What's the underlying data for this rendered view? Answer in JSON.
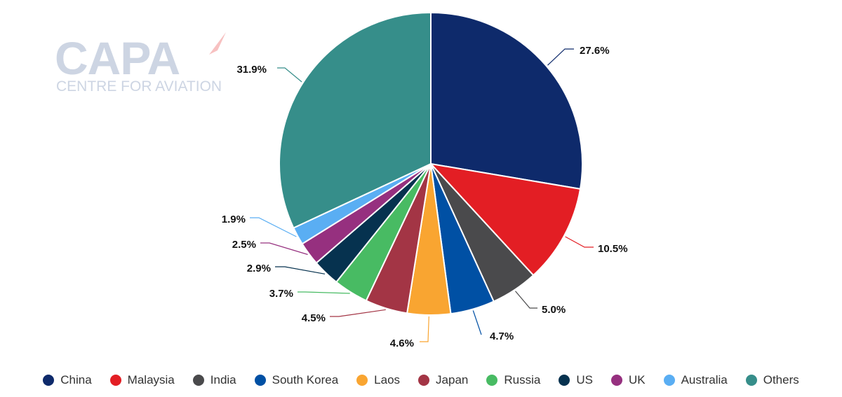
{
  "logo": {
    "main_text": "CAPA",
    "sub_text": "CENTRE FOR AVIATION"
  },
  "chart_data": {
    "type": "pie",
    "title": "",
    "start_angle_deg": 0,
    "slices": [
      {
        "label": "China",
        "value": 27.6,
        "display": "27.6%",
        "color": "#0e2a6b"
      },
      {
        "label": "Malaysia",
        "value": 10.5,
        "display": "10.5%",
        "color": "#e31e24"
      },
      {
        "label": "India",
        "value": 5.0,
        "display": "5.0%",
        "color": "#4a4a4c"
      },
      {
        "label": "South Korea",
        "value": 4.7,
        "display": "4.7%",
        "color": "#0050a4"
      },
      {
        "label": "Laos",
        "value": 4.6,
        "display": "4.6%",
        "color": "#f9a531"
      },
      {
        "label": "Japan",
        "value": 4.5,
        "display": "4.5%",
        "color": "#a33545"
      },
      {
        "label": "Russia",
        "value": 3.7,
        "display": "3.7%",
        "color": "#48bb63"
      },
      {
        "label": "US",
        "value": 2.9,
        "display": "2.9%",
        "color": "#06324f"
      },
      {
        "label": "UK",
        "value": 2.5,
        "display": "2.5%",
        "color": "#96307f"
      },
      {
        "label": "Australia",
        "value": 1.9,
        "display": "1.9%",
        "color": "#5aaef3"
      },
      {
        "label": "Others",
        "value": 31.9,
        "display": "31.9%",
        "color": "#368e8a"
      }
    ],
    "legend_position": "bottom"
  }
}
